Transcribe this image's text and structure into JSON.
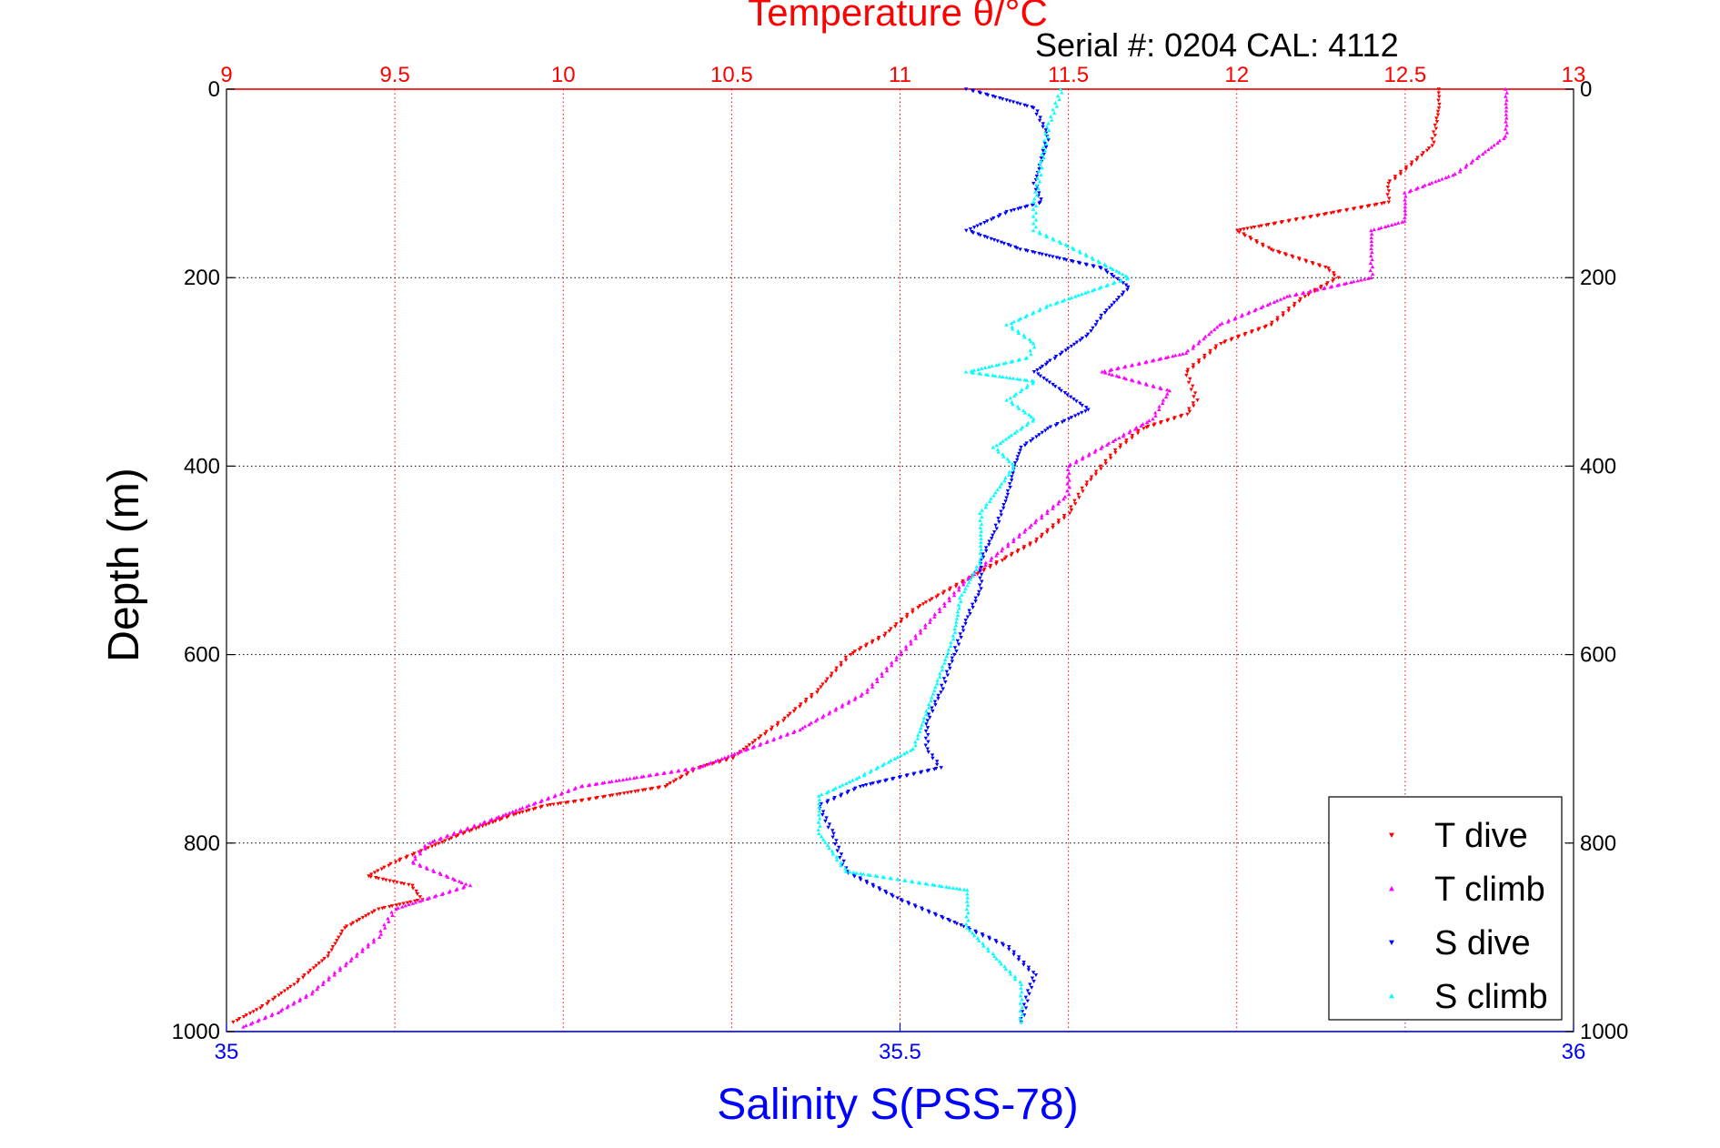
{
  "chart_data": {
    "type": "scatter",
    "title": "Temperature θ/°C",
    "subtitle": "Serial #: 0204  CAL: 4112",
    "ylabel": "Depth (m)",
    "xlabel": "Salinity S(PSS-78)",
    "ylim": [
      0,
      1000
    ],
    "y_reversed": true,
    "x_top": {
      "label": "Temperature θ/°C",
      "lim": [
        9,
        13
      ],
      "ticks": [
        "9",
        "9.5",
        "10",
        "10.5",
        "11",
        "11.5",
        "12",
        "12.5",
        "13"
      ],
      "tick_values": [
        9,
        9.5,
        10,
        10.5,
        11,
        11.5,
        12,
        12.5,
        13
      ],
      "color": "#ff0000"
    },
    "x_bottom": {
      "label": "Salinity S(PSS-78)",
      "lim": [
        35,
        36
      ],
      "ticks": [
        "35",
        "35.5",
        "36"
      ],
      "tick_values": [
        35,
        35.5,
        36
      ],
      "color": "#0000ff"
    },
    "y_ticks": [
      "0",
      "200",
      "400",
      "600",
      "800",
      "1000"
    ],
    "y_tick_values": [
      0,
      200,
      400,
      600,
      800,
      1000
    ],
    "grid": true,
    "legend_position": "bottom-right",
    "series": [
      {
        "name": "T dive",
        "axis": "temperature",
        "color": "#ff0000",
        "marker": "triangle-down",
        "points": [
          [
            12.6,
            0
          ],
          [
            12.6,
            20
          ],
          [
            12.58,
            60
          ],
          [
            12.45,
            100
          ],
          [
            12.45,
            120
          ],
          [
            12.3,
            130
          ],
          [
            12.0,
            150
          ],
          [
            12.1,
            170
          ],
          [
            12.27,
            190
          ],
          [
            12.3,
            200
          ],
          [
            12.2,
            220
          ],
          [
            12.1,
            250
          ],
          [
            11.95,
            270
          ],
          [
            11.85,
            300
          ],
          [
            11.88,
            330
          ],
          [
            11.85,
            345
          ],
          [
            11.72,
            360
          ],
          [
            11.65,
            380
          ],
          [
            11.55,
            420
          ],
          [
            11.5,
            450
          ],
          [
            11.4,
            480
          ],
          [
            11.3,
            500
          ],
          [
            11.2,
            520
          ],
          [
            11.05,
            550
          ],
          [
            10.95,
            580
          ],
          [
            10.85,
            600
          ],
          [
            10.75,
            640
          ],
          [
            10.65,
            670
          ],
          [
            10.5,
            710
          ],
          [
            10.4,
            720
          ],
          [
            10.3,
            740
          ],
          [
            10.05,
            755
          ],
          [
            9.95,
            760
          ],
          [
            9.85,
            770
          ],
          [
            9.7,
            790
          ],
          [
            9.5,
            820
          ],
          [
            9.42,
            835
          ],
          [
            9.55,
            845
          ],
          [
            9.58,
            860
          ],
          [
            9.45,
            870
          ],
          [
            9.35,
            890
          ],
          [
            9.3,
            920
          ],
          [
            9.2,
            950
          ],
          [
            9.1,
            975
          ],
          [
            9.02,
            990
          ]
        ]
      },
      {
        "name": "T climb",
        "axis": "temperature",
        "color": "#ff00ff",
        "marker": "triangle-up",
        "points": [
          [
            12.8,
            0
          ],
          [
            12.8,
            50
          ],
          [
            12.65,
            90
          ],
          [
            12.5,
            110
          ],
          [
            12.5,
            140
          ],
          [
            12.4,
            150
          ],
          [
            12.4,
            200
          ],
          [
            12.15,
            220
          ],
          [
            11.95,
            250
          ],
          [
            11.85,
            280
          ],
          [
            11.6,
            300
          ],
          [
            11.8,
            320
          ],
          [
            11.75,
            350
          ],
          [
            11.65,
            370
          ],
          [
            11.5,
            400
          ],
          [
            11.5,
            430
          ],
          [
            11.4,
            460
          ],
          [
            11.3,
            490
          ],
          [
            11.2,
            520
          ],
          [
            11.1,
            560
          ],
          [
            11.0,
            600
          ],
          [
            10.9,
            640
          ],
          [
            10.7,
            680
          ],
          [
            10.4,
            720
          ],
          [
            10.05,
            740
          ],
          [
            9.75,
            780
          ],
          [
            9.6,
            800
          ],
          [
            9.55,
            820
          ],
          [
            9.72,
            845
          ],
          [
            9.5,
            870
          ],
          [
            9.45,
            900
          ],
          [
            9.35,
            930
          ],
          [
            9.25,
            960
          ],
          [
            9.15,
            980
          ],
          [
            9.05,
            995
          ]
        ]
      },
      {
        "name": "S dive",
        "axis": "salinity",
        "color": "#0000ff",
        "marker": "triangle-down",
        "points": [
          [
            35.55,
            0
          ],
          [
            35.6,
            20
          ],
          [
            35.61,
            50
          ],
          [
            35.6,
            100
          ],
          [
            35.605,
            120
          ],
          [
            35.58,
            130
          ],
          [
            35.55,
            150
          ],
          [
            35.59,
            170
          ],
          [
            35.65,
            190
          ],
          [
            35.67,
            210
          ],
          [
            35.65,
            240
          ],
          [
            35.64,
            260
          ],
          [
            35.61,
            290
          ],
          [
            35.6,
            300
          ],
          [
            35.62,
            320
          ],
          [
            35.64,
            340
          ],
          [
            35.61,
            360
          ],
          [
            35.59,
            380
          ],
          [
            35.585,
            400
          ],
          [
            35.58,
            430
          ],
          [
            35.57,
            470
          ],
          [
            35.56,
            500
          ],
          [
            35.56,
            530
          ],
          [
            35.55,
            560
          ],
          [
            35.54,
            600
          ],
          [
            35.53,
            640
          ],
          [
            35.52,
            670
          ],
          [
            35.52,
            700
          ],
          [
            35.53,
            720
          ],
          [
            35.47,
            740
          ],
          [
            35.44,
            760
          ],
          [
            35.45,
            790
          ],
          [
            35.46,
            830
          ],
          [
            35.5,
            860
          ],
          [
            35.55,
            890
          ],
          [
            35.58,
            910
          ],
          [
            35.6,
            940
          ],
          [
            35.595,
            960
          ],
          [
            35.59,
            990
          ]
        ]
      },
      {
        "name": "S climb",
        "axis": "salinity",
        "color": "#00ffff",
        "marker": "triangle-up",
        "points": [
          [
            35.62,
            0
          ],
          [
            35.61,
            40
          ],
          [
            35.605,
            80
          ],
          [
            35.6,
            120
          ],
          [
            35.6,
            150
          ],
          [
            35.63,
            170
          ],
          [
            35.67,
            200
          ],
          [
            35.61,
            230
          ],
          [
            35.58,
            250
          ],
          [
            35.6,
            270
          ],
          [
            35.595,
            285
          ],
          [
            35.55,
            300
          ],
          [
            35.6,
            310
          ],
          [
            35.58,
            330
          ],
          [
            35.6,
            350
          ],
          [
            35.57,
            380
          ],
          [
            35.585,
            400
          ],
          [
            35.56,
            450
          ],
          [
            35.56,
            500
          ],
          [
            35.545,
            540
          ],
          [
            35.54,
            580
          ],
          [
            35.53,
            620
          ],
          [
            35.52,
            660
          ],
          [
            35.51,
            700
          ],
          [
            35.47,
            730
          ],
          [
            35.44,
            750
          ],
          [
            35.44,
            790
          ],
          [
            35.46,
            830
          ],
          [
            35.55,
            850
          ],
          [
            35.55,
            890
          ],
          [
            35.57,
            920
          ],
          [
            35.59,
            950
          ],
          [
            35.59,
            990
          ]
        ]
      }
    ]
  }
}
